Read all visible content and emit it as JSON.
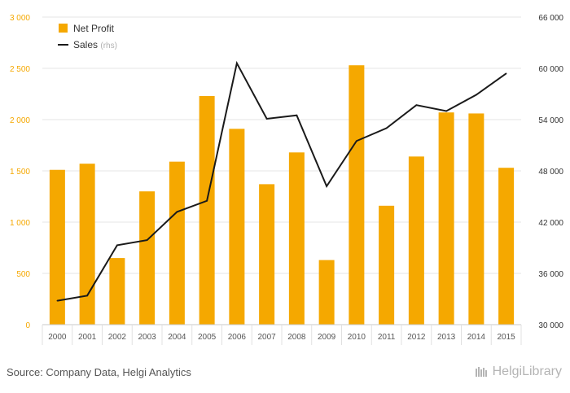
{
  "chart_data": {
    "type": "bar",
    "categories": [
      "2000",
      "2001",
      "2002",
      "2003",
      "2004",
      "2005",
      "2006",
      "2007",
      "2008",
      "2009",
      "2010",
      "2011",
      "2012",
      "2013",
      "2014",
      "2015"
    ],
    "series": [
      {
        "name": "Net Profit",
        "type": "bar",
        "axis": "left",
        "color": "#f5a800",
        "values": [
          1510,
          1570,
          650,
          1300,
          1590,
          2230,
          1910,
          1370,
          1680,
          630,
          2530,
          1160,
          1640,
          2070,
          2060,
          1530
        ]
      },
      {
        "name": "Sales",
        "type": "line",
        "axis": "right",
        "color": "#1a1a1a",
        "values": [
          32800,
          33400,
          39300,
          39900,
          43200,
          44500,
          60600,
          54100,
          54500,
          46200,
          51500,
          53000,
          55700,
          55000,
          56900,
          59400
        ]
      }
    ],
    "legend": {
      "items": [
        {
          "label": "Net Profit",
          "suffix": ""
        },
        {
          "label": "Sales",
          "suffix": "(rhs)"
        }
      ],
      "placement": "top-left"
    },
    "y_left": {
      "ylim": [
        0,
        3000
      ],
      "ticks": [
        0,
        500,
        1000,
        1500,
        2000,
        2500,
        3000
      ],
      "tick_labels": [
        "0",
        "500",
        "1 000",
        "1 500",
        "2 000",
        "2 500",
        "3 000"
      ],
      "color": "#f5a800"
    },
    "y_right": {
      "ylim": [
        30000,
        66000
      ],
      "ticks": [
        30000,
        36000,
        42000,
        48000,
        54000,
        60000,
        66000
      ],
      "tick_labels": [
        "30 000",
        "36 000",
        "42 000",
        "48 000",
        "54 000",
        "60 000",
        "66 000"
      ]
    },
    "grid": true
  },
  "footer": {
    "source": "Source: Company Data, Helgi Analytics",
    "logo": "HelgiLibrary"
  }
}
